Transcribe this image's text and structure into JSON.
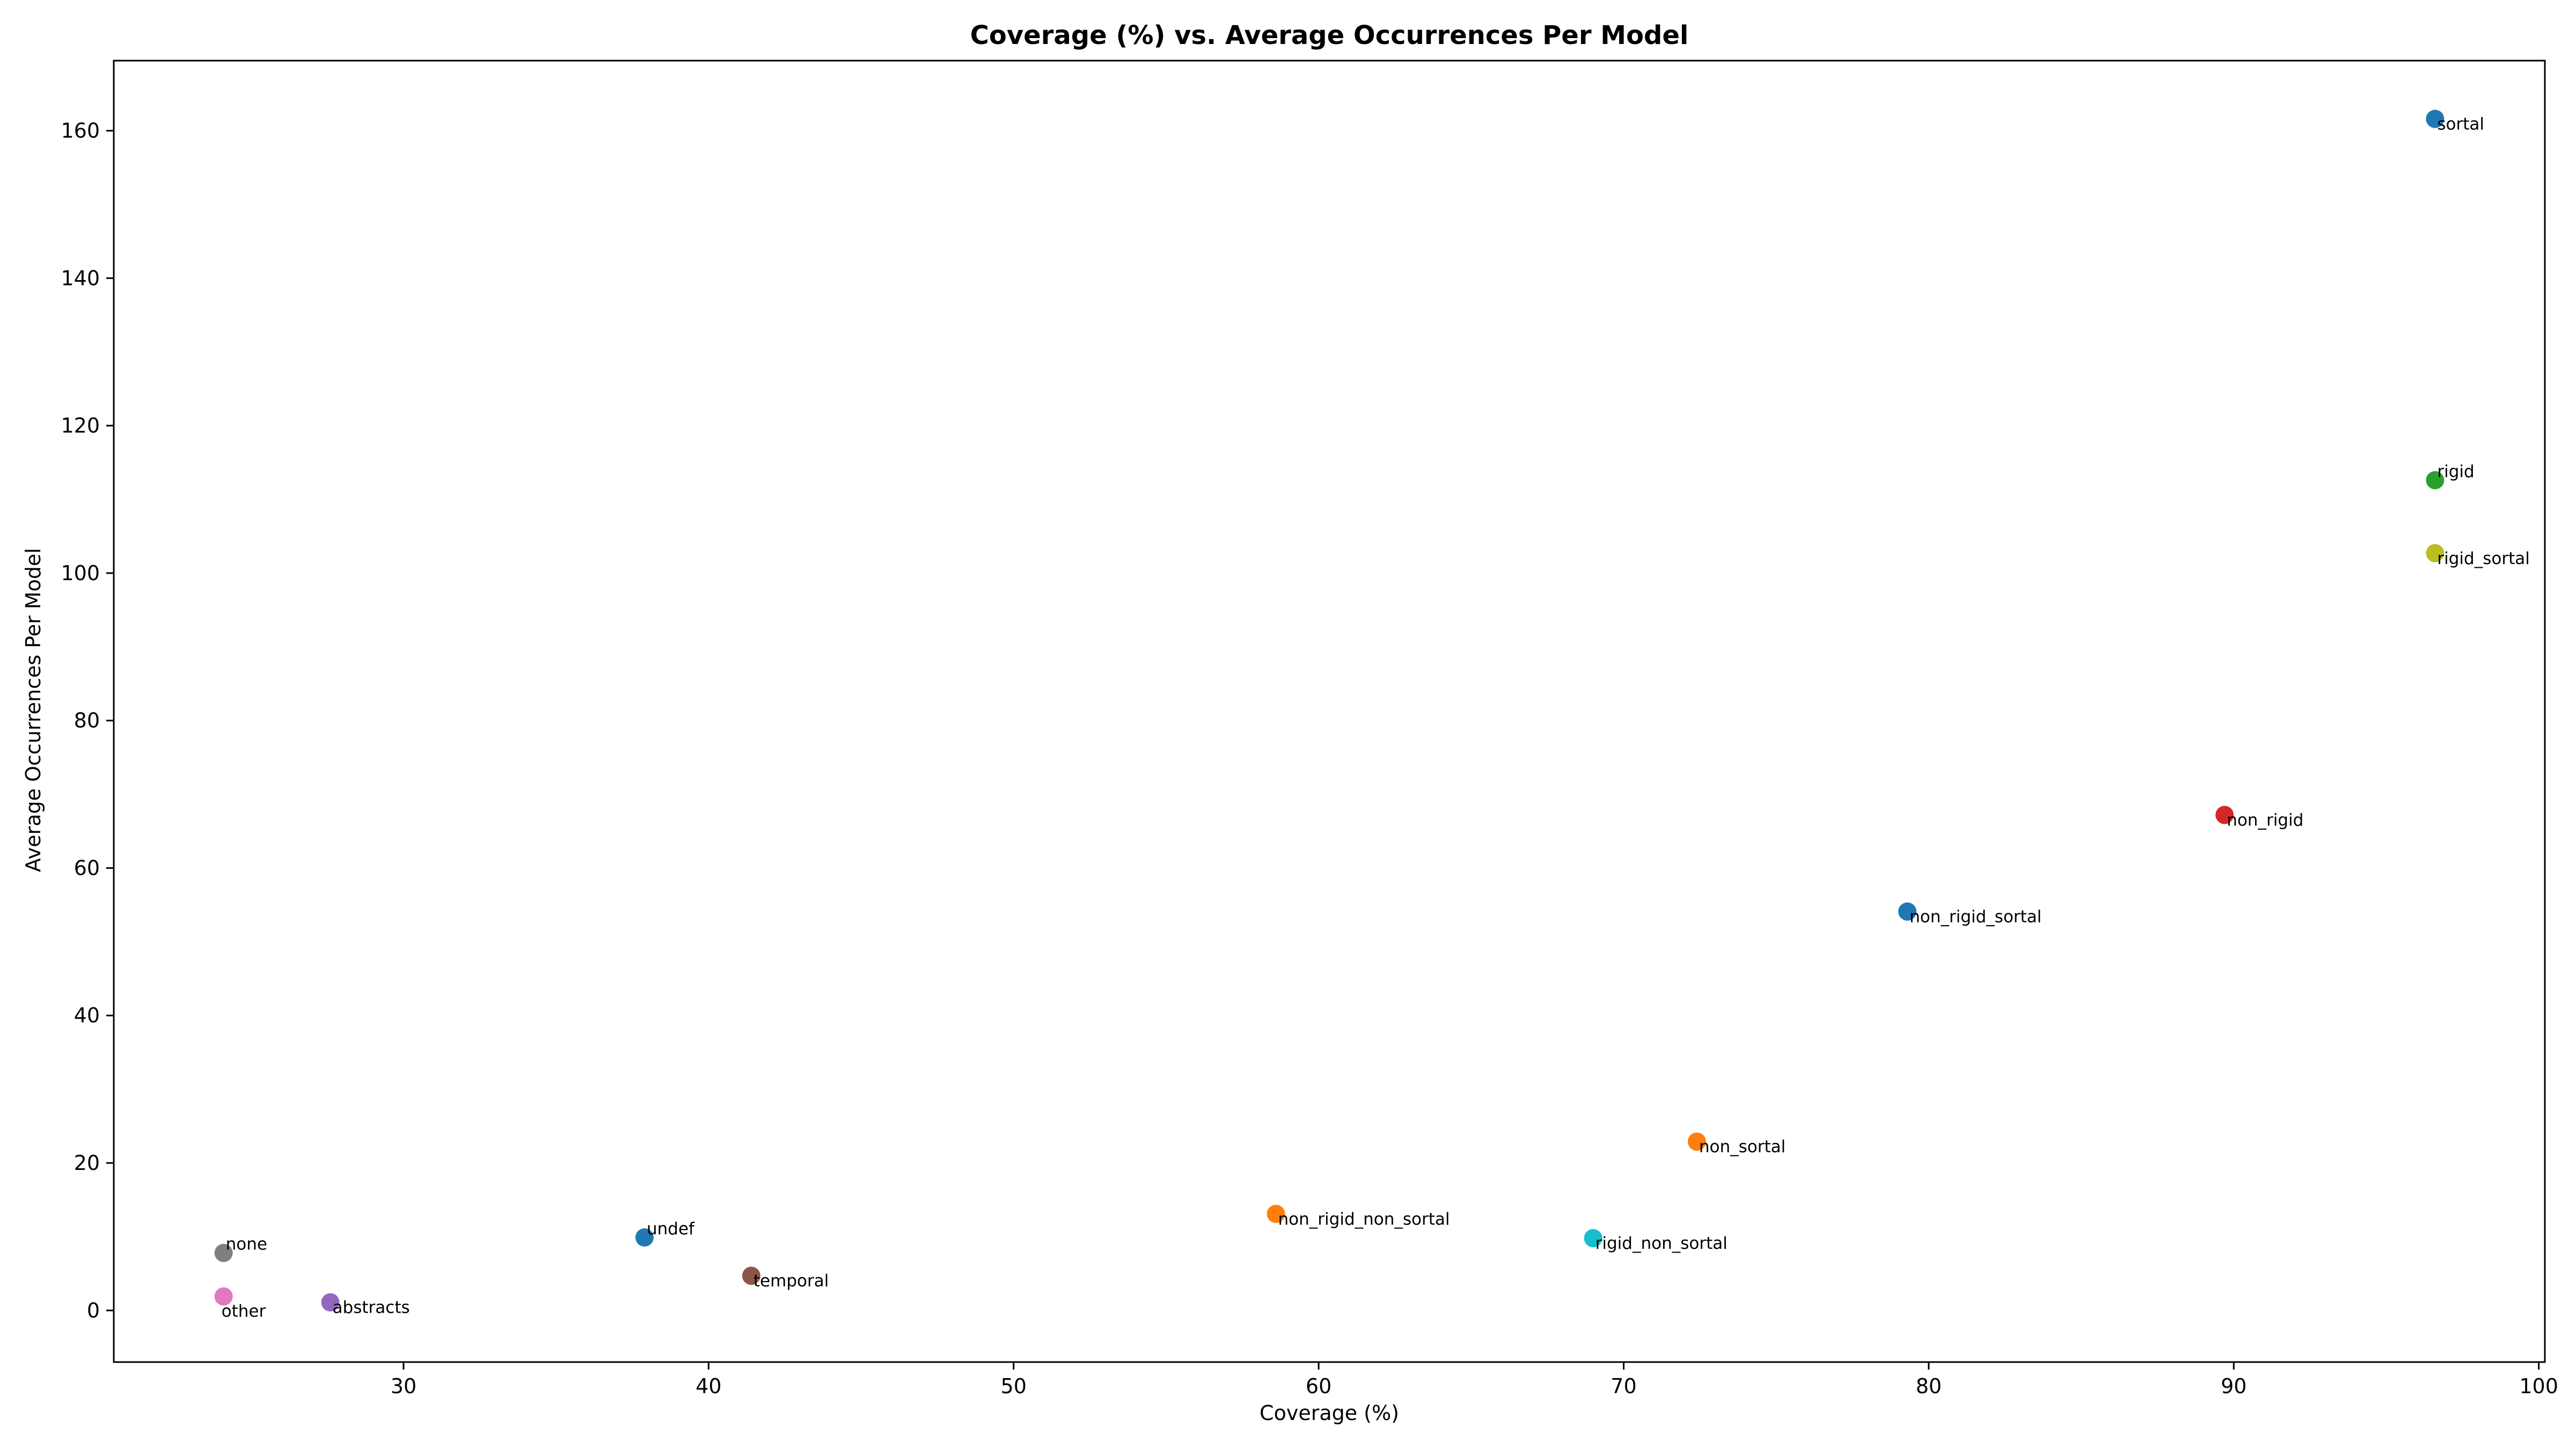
{
  "chart_data": {
    "type": "scatter",
    "title": "Coverage (%) vs. Average Occurrences Per Model",
    "xlabel": "Coverage (%)",
    "ylabel": "Average Occurrences Per Model",
    "xlim": [
      20.5,
      100.2
    ],
    "ylim": [
      -7,
      169.5
    ],
    "xticks": [
      30,
      40,
      50,
      60,
      70,
      80,
      90,
      100
    ],
    "yticks": [
      0,
      20,
      40,
      60,
      80,
      100,
      120,
      140,
      160
    ],
    "grid": false,
    "points": [
      {
        "label": "sortal",
        "x": 96.6,
        "y": 161.6,
        "color": "#1f77b4",
        "label_pos": "below-right"
      },
      {
        "label": "rigid",
        "x": 96.6,
        "y": 112.6,
        "color": "#2ca02c",
        "label_pos": "above-right"
      },
      {
        "label": "rigid_sortal",
        "x": 96.6,
        "y": 102.7,
        "color": "#bcbd22",
        "label_pos": "below-right"
      },
      {
        "label": "non_rigid",
        "x": 89.7,
        "y": 67.2,
        "color": "#d62728",
        "label_pos": "below-right"
      },
      {
        "label": "non_rigid_sortal",
        "x": 79.3,
        "y": 54.1,
        "color": "#1f77b4",
        "label_pos": "below-right"
      },
      {
        "label": "non_sortal",
        "x": 72.4,
        "y": 22.9,
        "color": "#ff7f0e",
        "label_pos": "below-right"
      },
      {
        "label": "non_rigid_non_sortal",
        "x": 58.6,
        "y": 13.1,
        "color": "#ff7f0e",
        "label_pos": "below-right"
      },
      {
        "label": "rigid_non_sortal",
        "x": 69.0,
        "y": 9.8,
        "color": "#17becf",
        "label_pos": "below-right"
      },
      {
        "label": "undef",
        "x": 37.9,
        "y": 9.9,
        "color": "#1f77b4",
        "label_pos": "above-right"
      },
      {
        "label": "temporal",
        "x": 41.4,
        "y": 4.7,
        "color": "#8c564b",
        "label_pos": "below-right"
      },
      {
        "label": "none",
        "x": 24.1,
        "y": 7.8,
        "color": "#7f7f7f",
        "label_pos": "above-right"
      },
      {
        "label": "other",
        "x": 24.1,
        "y": 1.9,
        "color": "#e377c2",
        "label_pos": "below-left"
      },
      {
        "label": "abstracts",
        "x": 27.6,
        "y": 1.1,
        "color": "#9467bd",
        "label_pos": "below-right"
      }
    ]
  }
}
